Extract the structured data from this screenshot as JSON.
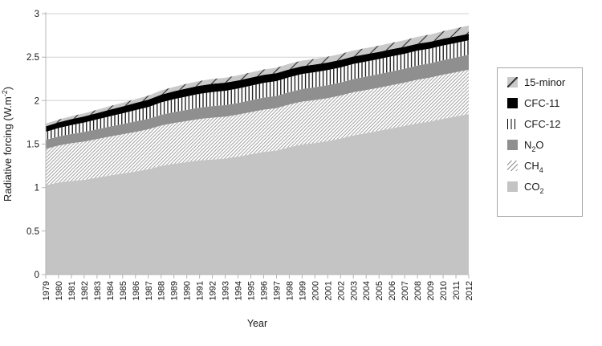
{
  "figure": {
    "background": "#ffffff"
  },
  "chart_data": {
    "type": "area",
    "stacked": true,
    "title": "",
    "xlabel": "Year",
    "ylabel_text": "Radiative forcing (W.m-2)",
    "ylabel_parts": [
      {
        "t": "Radiative forcing (W.m"
      },
      {
        "t": "-2",
        "sup": true
      },
      {
        "t": ")"
      }
    ],
    "x": [
      1979,
      1980,
      1981,
      1982,
      1983,
      1984,
      1985,
      1986,
      1987,
      1988,
      1989,
      1990,
      1991,
      1992,
      1993,
      1994,
      1995,
      1996,
      1997,
      1998,
      1999,
      2000,
      2001,
      2002,
      2003,
      2004,
      2005,
      2006,
      2007,
      2008,
      2009,
      2010,
      2011,
      2012
    ],
    "ylim": [
      0,
      3
    ],
    "yticks": [
      0,
      0.5,
      1,
      1.5,
      2,
      2.5,
      3
    ],
    "grid": true,
    "legend_position": "right-outside",
    "series": [
      {
        "name": "CO2",
        "pattern": "solid-lightgray",
        "values": [
          1.027,
          1.058,
          1.077,
          1.089,
          1.115,
          1.14,
          1.162,
          1.184,
          1.211,
          1.25,
          1.274,
          1.293,
          1.313,
          1.324,
          1.334,
          1.356,
          1.383,
          1.41,
          1.426,
          1.465,
          1.495,
          1.513,
          1.535,
          1.564,
          1.6,
          1.626,
          1.654,
          1.684,
          1.709,
          1.739,
          1.76,
          1.791,
          1.818,
          1.846
        ]
      },
      {
        "name": "CH4",
        "pattern": "diagonal-hatch-thin",
        "values": [
          0.419,
          0.426,
          0.433,
          0.44,
          0.443,
          0.446,
          0.451,
          0.456,
          0.46,
          0.464,
          0.468,
          0.472,
          0.476,
          0.48,
          0.481,
          0.483,
          0.485,
          0.486,
          0.487,
          0.491,
          0.494,
          0.494,
          0.494,
          0.494,
          0.496,
          0.496,
          0.495,
          0.495,
          0.498,
          0.502,
          0.505,
          0.507,
          0.508,
          0.51
        ]
      },
      {
        "name": "N2O",
        "pattern": "solid-gray",
        "values": [
          0.104,
          0.104,
          0.107,
          0.111,
          0.113,
          0.116,
          0.118,
          0.122,
          0.12,
          0.123,
          0.126,
          0.129,
          0.131,
          0.133,
          0.134,
          0.134,
          0.136,
          0.139,
          0.141,
          0.142,
          0.144,
          0.147,
          0.148,
          0.15,
          0.152,
          0.154,
          0.156,
          0.158,
          0.16,
          0.163,
          0.165,
          0.168,
          0.17,
          0.173
        ]
      },
      {
        "name": "CFC-12",
        "pattern": "vertical-lines",
        "values": [
          0.092,
          0.097,
          0.102,
          0.108,
          0.113,
          0.118,
          0.123,
          0.129,
          0.135,
          0.143,
          0.149,
          0.154,
          0.158,
          0.162,
          0.164,
          0.166,
          0.168,
          0.169,
          0.171,
          0.172,
          0.173,
          0.173,
          0.174,
          0.174,
          0.174,
          0.174,
          0.173,
          0.173,
          0.172,
          0.171,
          0.169,
          0.168,
          0.167,
          0.165
        ]
      },
      {
        "name": "CFC-11",
        "pattern": "solid-black",
        "values": [
          0.062,
          0.065,
          0.068,
          0.07,
          0.073,
          0.076,
          0.079,
          0.082,
          0.085,
          0.088,
          0.09,
          0.092,
          0.093,
          0.094,
          0.093,
          0.093,
          0.092,
          0.092,
          0.091,
          0.09,
          0.089,
          0.088,
          0.087,
          0.086,
          0.085,
          0.084,
          0.082,
          0.081,
          0.08,
          0.079,
          0.078,
          0.077,
          0.076,
          0.075
        ]
      },
      {
        "name": "15-minor",
        "pattern": "diagonal-hatch-gray",
        "values": [
          0.031,
          0.033,
          0.034,
          0.036,
          0.038,
          0.04,
          0.042,
          0.044,
          0.046,
          0.049,
          0.051,
          0.053,
          0.055,
          0.056,
          0.057,
          0.058,
          0.06,
          0.061,
          0.062,
          0.064,
          0.065,
          0.066,
          0.067,
          0.068,
          0.069,
          0.07,
          0.072,
          0.073,
          0.076,
          0.08,
          0.083,
          0.087,
          0.091,
          0.095
        ]
      }
    ]
  },
  "axes": {
    "ytick_labels": [
      "0",
      "0.5",
      "1",
      "1.5",
      "2",
      "2.5",
      "3"
    ],
    "xtick_labels": [
      "1979",
      "1980",
      "1981",
      "1982",
      "1983",
      "1984",
      "1985",
      "1986",
      "1987",
      "1988",
      "1989",
      "1990",
      "1991",
      "1992",
      "1993",
      "1994",
      "1995",
      "1996",
      "1997",
      "1998",
      "1999",
      "2000",
      "2001",
      "2002",
      "2003",
      "2004",
      "2005",
      "2006",
      "2007",
      "2008",
      "2009",
      "2010",
      "2011",
      "2012"
    ]
  },
  "legend": {
    "items": [
      {
        "id": "15-minor",
        "swatch": "minor15",
        "label_parts": [
          {
            "t": "15-minor"
          }
        ]
      },
      {
        "id": "cfc-11",
        "swatch": "cfc11",
        "label_parts": [
          {
            "t": "CFC-11"
          }
        ]
      },
      {
        "id": "cfc-12",
        "swatch": "cfc12",
        "label_parts": [
          {
            "t": "CFC-12"
          }
        ]
      },
      {
        "id": "n2o",
        "swatch": "n2o",
        "label_parts": [
          {
            "t": "N"
          },
          {
            "t": "2",
            "sub": true
          },
          {
            "t": "O"
          }
        ]
      },
      {
        "id": "ch4",
        "swatch": "ch4",
        "label_parts": [
          {
            "t": "CH"
          },
          {
            "t": "4",
            "sub": true
          }
        ]
      },
      {
        "id": "co2",
        "swatch": "co2",
        "label_parts": [
          {
            "t": "CO"
          },
          {
            "t": "2",
            "sub": true
          }
        ]
      }
    ]
  },
  "colors": {
    "co2_fill": "#c4c4c4",
    "ch4_line": "#8f8f8f",
    "n2o_fill": "#8f8f8f",
    "cfc12_line": "#000000",
    "cfc11_fill": "#000000",
    "minor15_bg": "#c9c9c9",
    "minor15_line": "#383838",
    "grid_line": "#d2d2d2",
    "axis_line": "#b5b5b5",
    "text": "#1a1a1a",
    "legend_border": "#a6a6a6",
    "background": "#ffffff"
  }
}
